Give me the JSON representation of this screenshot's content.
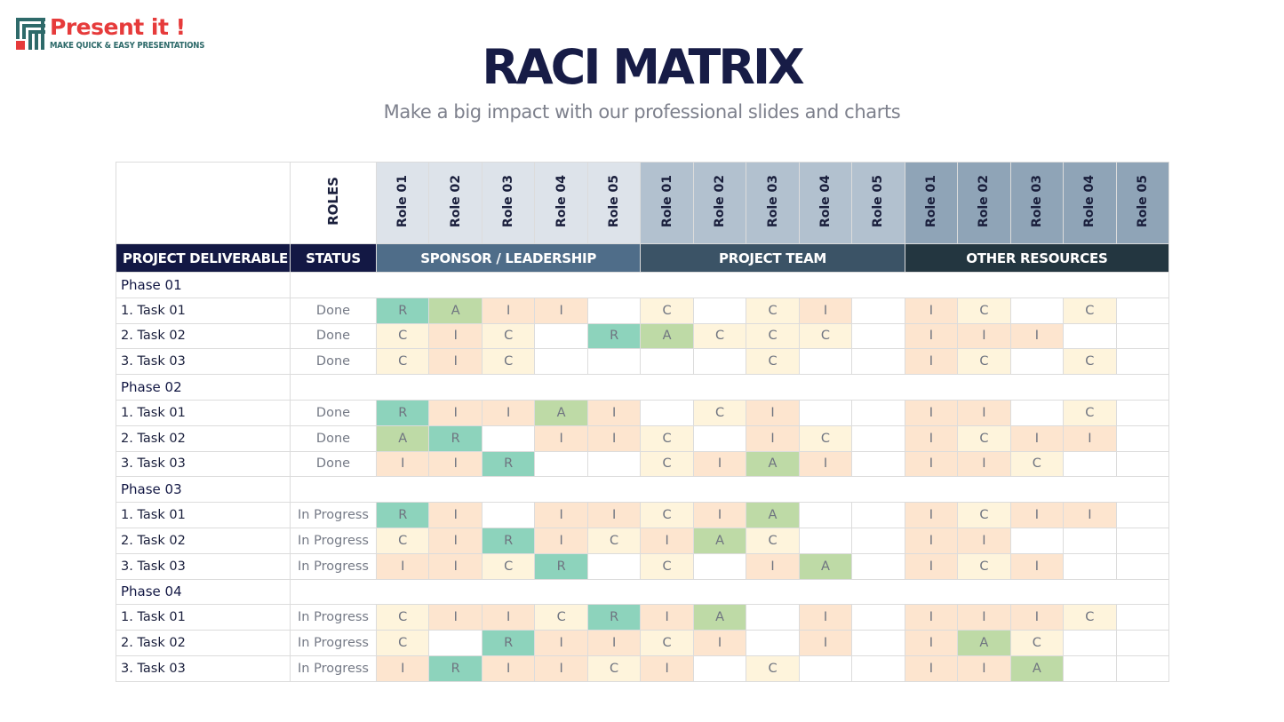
{
  "logo": {
    "title": "Present it !",
    "tagline": "MAKE QUICK & EASY PRESENTATIONS"
  },
  "title": "RACI MATRIX",
  "subtitle": "Make a big impact with our professional slides and charts",
  "table": {
    "roles_label": "ROLES",
    "deliverable_label": "PROJECT DELIVERABLE",
    "status_label": "STATUS",
    "groups": [
      {
        "name": "SPONSOR / LEADERSHIP",
        "roles": [
          "Role 01",
          "Role 02",
          "Role 03",
          "Role 04",
          "Role 05"
        ]
      },
      {
        "name": "PROJECT TEAM",
        "roles": [
          "Role 01",
          "Role 02",
          "Role 03",
          "Role 04",
          "Role 05"
        ]
      },
      {
        "name": "OTHER RESOURCES",
        "roles": [
          "Role 01",
          "Role 02",
          "Role 03",
          "Role 04",
          "Role 05"
        ]
      }
    ],
    "phases": [
      {
        "name": "Phase 01",
        "tasks": [
          {
            "name": "1. Task 01",
            "status": "Done",
            "cells": [
              "R",
              "A",
              "I",
              "I",
              "",
              "C",
              "",
              "C",
              "I",
              "",
              "I",
              "C",
              "",
              "C",
              ""
            ]
          },
          {
            "name": "2. Task 02",
            "status": "Done",
            "cells": [
              "C",
              "I",
              "C",
              "",
              "R",
              "A",
              "C",
              "C",
              "C",
              "",
              "I",
              "I",
              "I",
              "",
              ""
            ]
          },
          {
            "name": "3. Task 03",
            "status": "Done",
            "cells": [
              "C",
              "I",
              "C",
              "",
              "",
              "",
              "",
              "C",
              "",
              "",
              "I",
              "C",
              "",
              "C",
              ""
            ]
          }
        ]
      },
      {
        "name": "Phase 02",
        "tasks": [
          {
            "name": "1. Task 01",
            "status": "Done",
            "cells": [
              "R",
              "I",
              "I",
              "A",
              "I",
              "",
              "C",
              "I",
              "",
              "",
              "I",
              "I",
              "",
              "C",
              ""
            ]
          },
          {
            "name": "2. Task 02",
            "status": "Done",
            "cells": [
              "A",
              "R",
              "",
              "I",
              "I",
              "C",
              "",
              "I",
              "C",
              "",
              "I",
              "C",
              "I",
              "I",
              ""
            ]
          },
          {
            "name": "3. Task 03",
            "status": "Done",
            "cells": [
              "I",
              "I",
              "R",
              "",
              "",
              "C",
              "I",
              "A",
              "I",
              "",
              "I",
              "I",
              "C",
              "",
              ""
            ]
          }
        ]
      },
      {
        "name": "Phase 03",
        "tasks": [
          {
            "name": "1. Task 01",
            "status": "In Progress",
            "cells": [
              "R",
              "I",
              "",
              "I",
              "I",
              "C",
              "I",
              "A",
              "",
              "",
              "I",
              "C",
              "I",
              "I",
              ""
            ]
          },
          {
            "name": "2. Task 02",
            "status": "In Progress",
            "cells": [
              "C",
              "I",
              "R",
              "I",
              "C",
              "I",
              "A",
              "C",
              "",
              "",
              "I",
              "I",
              "",
              "",
              ""
            ]
          },
          {
            "name": "3. Task 03",
            "status": "In Progress",
            "cells": [
              "I",
              "I",
              "C",
              "R",
              "",
              "C",
              "",
              "I",
              "A",
              "",
              "I",
              "C",
              "I",
              "",
              ""
            ]
          }
        ]
      },
      {
        "name": "Phase 04",
        "tasks": [
          {
            "name": "1. Task 01",
            "status": "In Progress",
            "cells": [
              "C",
              "I",
              "I",
              "C",
              "R",
              "I",
              "A",
              "",
              "I",
              "",
              "I",
              "I",
              "I",
              "C",
              ""
            ]
          },
          {
            "name": "2. Task 02",
            "status": "In Progress",
            "cells": [
              "C",
              "",
              "R",
              "I",
              "I",
              "C",
              "I",
              "",
              "I",
              "",
              "I",
              "A",
              "C",
              "",
              ""
            ]
          },
          {
            "name": "3. Task 03",
            "status": "In Progress",
            "cells": [
              "I",
              "R",
              "I",
              "I",
              "C",
              "I",
              "",
              "C",
              "",
              "",
              "I",
              "I",
              "A",
              "",
              ""
            ]
          }
        ]
      }
    ]
  },
  "colors": {
    "R": "#8dd3bc",
    "A": "#bedaa6",
    "C": "#fef4dc",
    "I": "#fde5cf",
    "header_dark": "#131844",
    "sponsor": "#4f6d89",
    "project_team": "#3b5366",
    "other_resources": "#233640"
  }
}
